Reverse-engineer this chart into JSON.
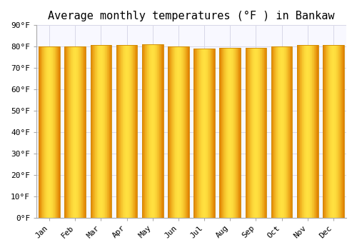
{
  "title": "Average monthly temperatures (°F ) in Bankaw",
  "months": [
    "Jan",
    "Feb",
    "Mar",
    "Apr",
    "May",
    "Jun",
    "Jul",
    "Aug",
    "Sep",
    "Oct",
    "Nov",
    "Dec"
  ],
  "values": [
    80.1,
    80.1,
    80.6,
    80.6,
    81.0,
    80.1,
    79.0,
    79.5,
    79.5,
    80.0,
    80.6,
    80.6
  ],
  "bar_color_edge": "#E08000",
  "bar_color_center": "#FFD040",
  "bar_color_mid": "#FFA500",
  "background_color": "#FFFFFF",
  "plot_bg_color": "#F8F8FF",
  "grid_color": "#D8D8E8",
  "ylim": [
    0,
    90
  ],
  "yticks": [
    0,
    10,
    20,
    30,
    40,
    50,
    60,
    70,
    80,
    90
  ],
  "title_fontsize": 11,
  "tick_fontsize": 8,
  "bar_width": 0.82
}
